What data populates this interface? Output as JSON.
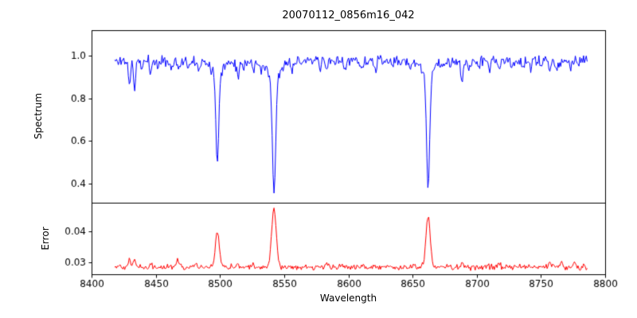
{
  "chart_data": {
    "type": "line",
    "title": "20070112_0856m16_042",
    "xlabel": "Wavelength",
    "grid": false,
    "legend_position": "none",
    "xlim": [
      8400,
      8800
    ],
    "xticks": [
      8400,
      8450,
      8500,
      8550,
      8600,
      8650,
      8700,
      8750,
      8800
    ],
    "xtick_labels": [
      "8400",
      "8450",
      "8500",
      "8550",
      "8600",
      "8650",
      "8700",
      "8750",
      "8800"
    ],
    "x_data_range": [
      8418,
      8786
    ],
    "n_points": 520,
    "seed": 11,
    "panels": [
      {
        "name": "spectrum",
        "ylabel": "Spectrum",
        "color": "#0000ff",
        "ylim": [
          0.31,
          1.12
        ],
        "yticks": [
          0.4,
          0.6,
          0.8,
          1.0
        ],
        "ytick_labels": [
          "0.4",
          "0.6",
          "0.8",
          "1.0"
        ],
        "continuum": 0.975,
        "noise_sigma_rel": 0.013,
        "clip_max": 1.06,
        "absorption_lines": [
          [
            8429.5,
            0.11,
            0.8
          ],
          [
            8433.5,
            0.12,
            0.9
          ],
          [
            8439,
            0.04,
            0.7
          ],
          [
            8446,
            0.05,
            0.7
          ],
          [
            8452,
            0.03,
            0.7
          ],
          [
            8462,
            0.04,
            0.7
          ],
          [
            8468,
            0.05,
            0.8
          ],
          [
            8475,
            0.03,
            0.7
          ],
          [
            8484,
            0.03,
            0.7
          ],
          [
            8498.0,
            0.42,
            1.1
          ],
          [
            8498.0,
            0.055,
            4.5
          ],
          [
            8514,
            0.07,
            0.9
          ],
          [
            8518,
            0.04,
            0.7
          ],
          [
            8526,
            0.05,
            0.8
          ],
          [
            8532,
            0.03,
            0.7
          ],
          [
            8542.1,
            0.55,
            1.3
          ],
          [
            8542.1,
            0.07,
            5.5
          ],
          [
            8556,
            0.03,
            0.7
          ],
          [
            8578,
            0.04,
            0.8
          ],
          [
            8583,
            0.04,
            0.8
          ],
          [
            8598,
            0.03,
            0.7
          ],
          [
            8611,
            0.04,
            0.8
          ],
          [
            8621,
            0.04,
            0.8
          ],
          [
            8634,
            0.03,
            0.7
          ],
          [
            8648,
            0.04,
            0.7
          ],
          [
            8662.1,
            0.54,
            1.2
          ],
          [
            8662.1,
            0.06,
            5.0
          ],
          [
            8674,
            0.04,
            0.7
          ],
          [
            8679,
            0.03,
            0.7
          ],
          [
            8688.5,
            0.1,
            1.0
          ],
          [
            8694,
            0.04,
            0.7
          ],
          [
            8702,
            0.03,
            0.7
          ],
          [
            8710,
            0.03,
            0.7
          ],
          [
            8717,
            0.04,
            0.7
          ],
          [
            8727,
            0.03,
            0.7
          ],
          [
            8736,
            0.04,
            0.7
          ],
          [
            8742,
            0.03,
            0.7
          ],
          [
            8750,
            0.03,
            0.7
          ],
          [
            8757,
            0.05,
            0.8
          ],
          [
            8763,
            0.04,
            0.7
          ],
          [
            8773,
            0.04,
            0.7
          ]
        ]
      },
      {
        "name": "error",
        "ylabel": "Error",
        "color": "#ff0000",
        "ylim": [
          0.0262,
          0.0492
        ],
        "yticks": [
          0.03,
          0.04
        ],
        "ytick_labels": [
          "0.03",
          "0.04"
        ],
        "baseline": 0.0285,
        "noise_sigma_abs": 0.00045,
        "emission_peaks": [
          [
            8429.5,
            0.003,
            0.9
          ],
          [
            8433.5,
            0.0025,
            0.9
          ],
          [
            8446,
            0.0012,
            0.8
          ],
          [
            8467,
            0.002,
            0.9
          ],
          [
            8481,
            0.0012,
            0.8
          ],
          [
            8498.0,
            0.0115,
            1.5
          ],
          [
            8514,
            0.001,
            0.8
          ],
          [
            8526,
            0.001,
            0.8
          ],
          [
            8542.1,
            0.019,
            1.8
          ],
          [
            8583,
            0.001,
            0.8
          ],
          [
            8611,
            0.0008,
            0.8
          ],
          [
            8662.1,
            0.0165,
            1.6
          ],
          [
            8688.5,
            0.002,
            0.9
          ],
          [
            8717,
            0.001,
            0.8
          ],
          [
            8757,
            0.0015,
            0.9
          ],
          [
            8766,
            0.0018,
            0.9
          ],
          [
            8776,
            0.002,
            0.9
          ]
        ]
      }
    ]
  }
}
